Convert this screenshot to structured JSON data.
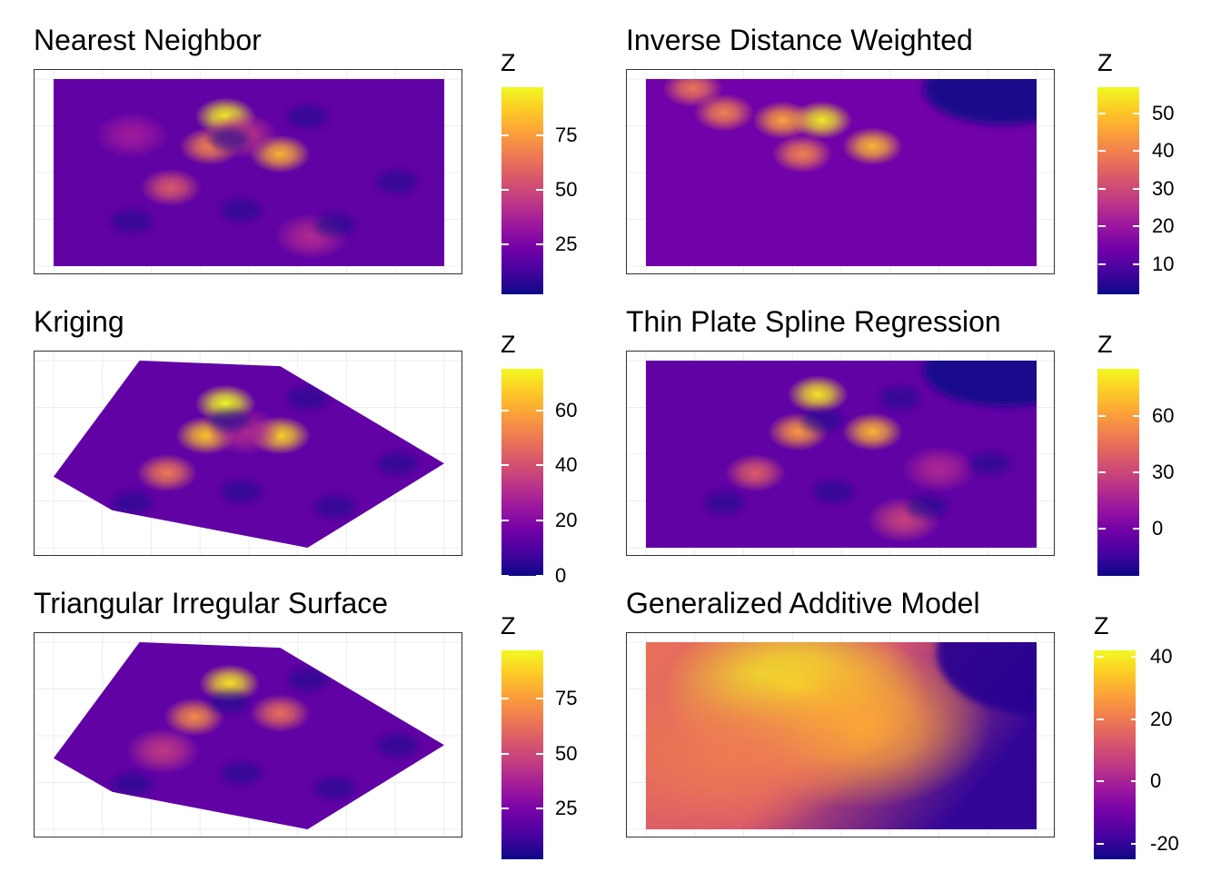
{
  "palette": {
    "name": "plasma",
    "stops": [
      "#0d0887",
      "#46039f",
      "#7201a8",
      "#9c179e",
      "#bd3786",
      "#d8576b",
      "#ed7953",
      "#fb9f3a",
      "#fdca26",
      "#f0f921"
    ]
  },
  "chart_data": [
    {
      "type": "heatmap",
      "title": "Nearest Neighbor",
      "legend_title": "Z",
      "legend_ticks": [
        "25",
        "50",
        "75"
      ],
      "legend_tick_values": [
        25,
        50,
        75
      ],
      "zlim": [
        2,
        97
      ],
      "shape": "rectangle",
      "hotspots": [
        {
          "x": 0.44,
          "y": 0.2,
          "z": 95
        },
        {
          "x": 0.4,
          "y": 0.36,
          "z": 68
        },
        {
          "x": 0.58,
          "y": 0.4,
          "z": 80
        },
        {
          "x": 0.3,
          "y": 0.58,
          "z": 55
        },
        {
          "x": 0.48,
          "y": 0.3,
          "z": 45
        },
        {
          "x": 0.66,
          "y": 0.84,
          "z": 40
        },
        {
          "x": 0.2,
          "y": 0.3,
          "z": 35
        }
      ]
    },
    {
      "type": "heatmap",
      "title": "Inverse Distance Weighted",
      "legend_title": "Z",
      "legend_ticks": [
        "10",
        "20",
        "30",
        "40",
        "50"
      ],
      "legend_tick_values": [
        10,
        20,
        30,
        40,
        50
      ],
      "zlim": [
        2,
        57
      ],
      "shape": "rectangle",
      "hotspots": [
        {
          "x": 0.45,
          "y": 0.22,
          "z": 55
        },
        {
          "x": 0.35,
          "y": 0.22,
          "z": 45
        },
        {
          "x": 0.58,
          "y": 0.36,
          "z": 48
        },
        {
          "x": 0.2,
          "y": 0.18,
          "z": 40
        },
        {
          "x": 0.4,
          "y": 0.4,
          "z": 40
        },
        {
          "x": 0.12,
          "y": 0.05,
          "z": 38
        }
      ]
    },
    {
      "type": "heatmap",
      "title": "Kriging",
      "legend_title": "Z",
      "legend_ticks": [
        "0",
        "20",
        "40",
        "60"
      ],
      "legend_tick_values": [
        0,
        20,
        40,
        60
      ],
      "zlim": [
        0,
        75
      ],
      "shape": "polygon",
      "hotspots": [
        {
          "x": 0.44,
          "y": 0.23,
          "z": 75
        },
        {
          "x": 0.39,
          "y": 0.4,
          "z": 65
        },
        {
          "x": 0.58,
          "y": 0.4,
          "z": 68
        },
        {
          "x": 0.29,
          "y": 0.6,
          "z": 50
        },
        {
          "x": 0.49,
          "y": 0.38,
          "z": 30
        }
      ]
    },
    {
      "type": "heatmap",
      "title": "Thin Plate Spline Regression",
      "legend_title": "Z",
      "legend_ticks": [
        "0",
        "30",
        "60"
      ],
      "legend_tick_values": [
        0,
        30,
        60
      ],
      "zlim": [
        -25,
        85
      ],
      "shape": "rectangle",
      "hotspots": [
        {
          "x": 0.44,
          "y": 0.18,
          "z": 80
        },
        {
          "x": 0.39,
          "y": 0.38,
          "z": 58
        },
        {
          "x": 0.58,
          "y": 0.38,
          "z": 66
        },
        {
          "x": 0.28,
          "y": 0.6,
          "z": 38
        },
        {
          "x": 0.66,
          "y": 0.85,
          "z": 28
        },
        {
          "x": 0.75,
          "y": 0.58,
          "z": 18
        }
      ]
    },
    {
      "type": "heatmap",
      "title": "Triangular Irregular Surface",
      "legend_title": "Z",
      "legend_ticks": [
        "25",
        "50",
        "75"
      ],
      "legend_tick_values": [
        25,
        50,
        75
      ],
      "zlim": [
        2,
        97
      ],
      "shape": "polygon",
      "hotspots": [
        {
          "x": 0.45,
          "y": 0.22,
          "z": 92
        },
        {
          "x": 0.36,
          "y": 0.4,
          "z": 70
        },
        {
          "x": 0.58,
          "y": 0.38,
          "z": 62
        },
        {
          "x": 0.28,
          "y": 0.58,
          "z": 45
        }
      ]
    },
    {
      "type": "heatmap",
      "title": "Generalized Additive Model",
      "legend_title": "Z",
      "legend_ticks": [
        "-20",
        "0",
        "20",
        "40"
      ],
      "legend_tick_values": [
        -20,
        0,
        20,
        40
      ],
      "zlim": [
        -25,
        42
      ],
      "shape": "rectangle",
      "hotspots": [
        {
          "x": 0.38,
          "y": 0.26,
          "z": 40
        },
        {
          "x": 0.55,
          "y": 0.45,
          "z": 28
        },
        {
          "x": 0.22,
          "y": 0.6,
          "z": 20
        }
      ]
    }
  ]
}
